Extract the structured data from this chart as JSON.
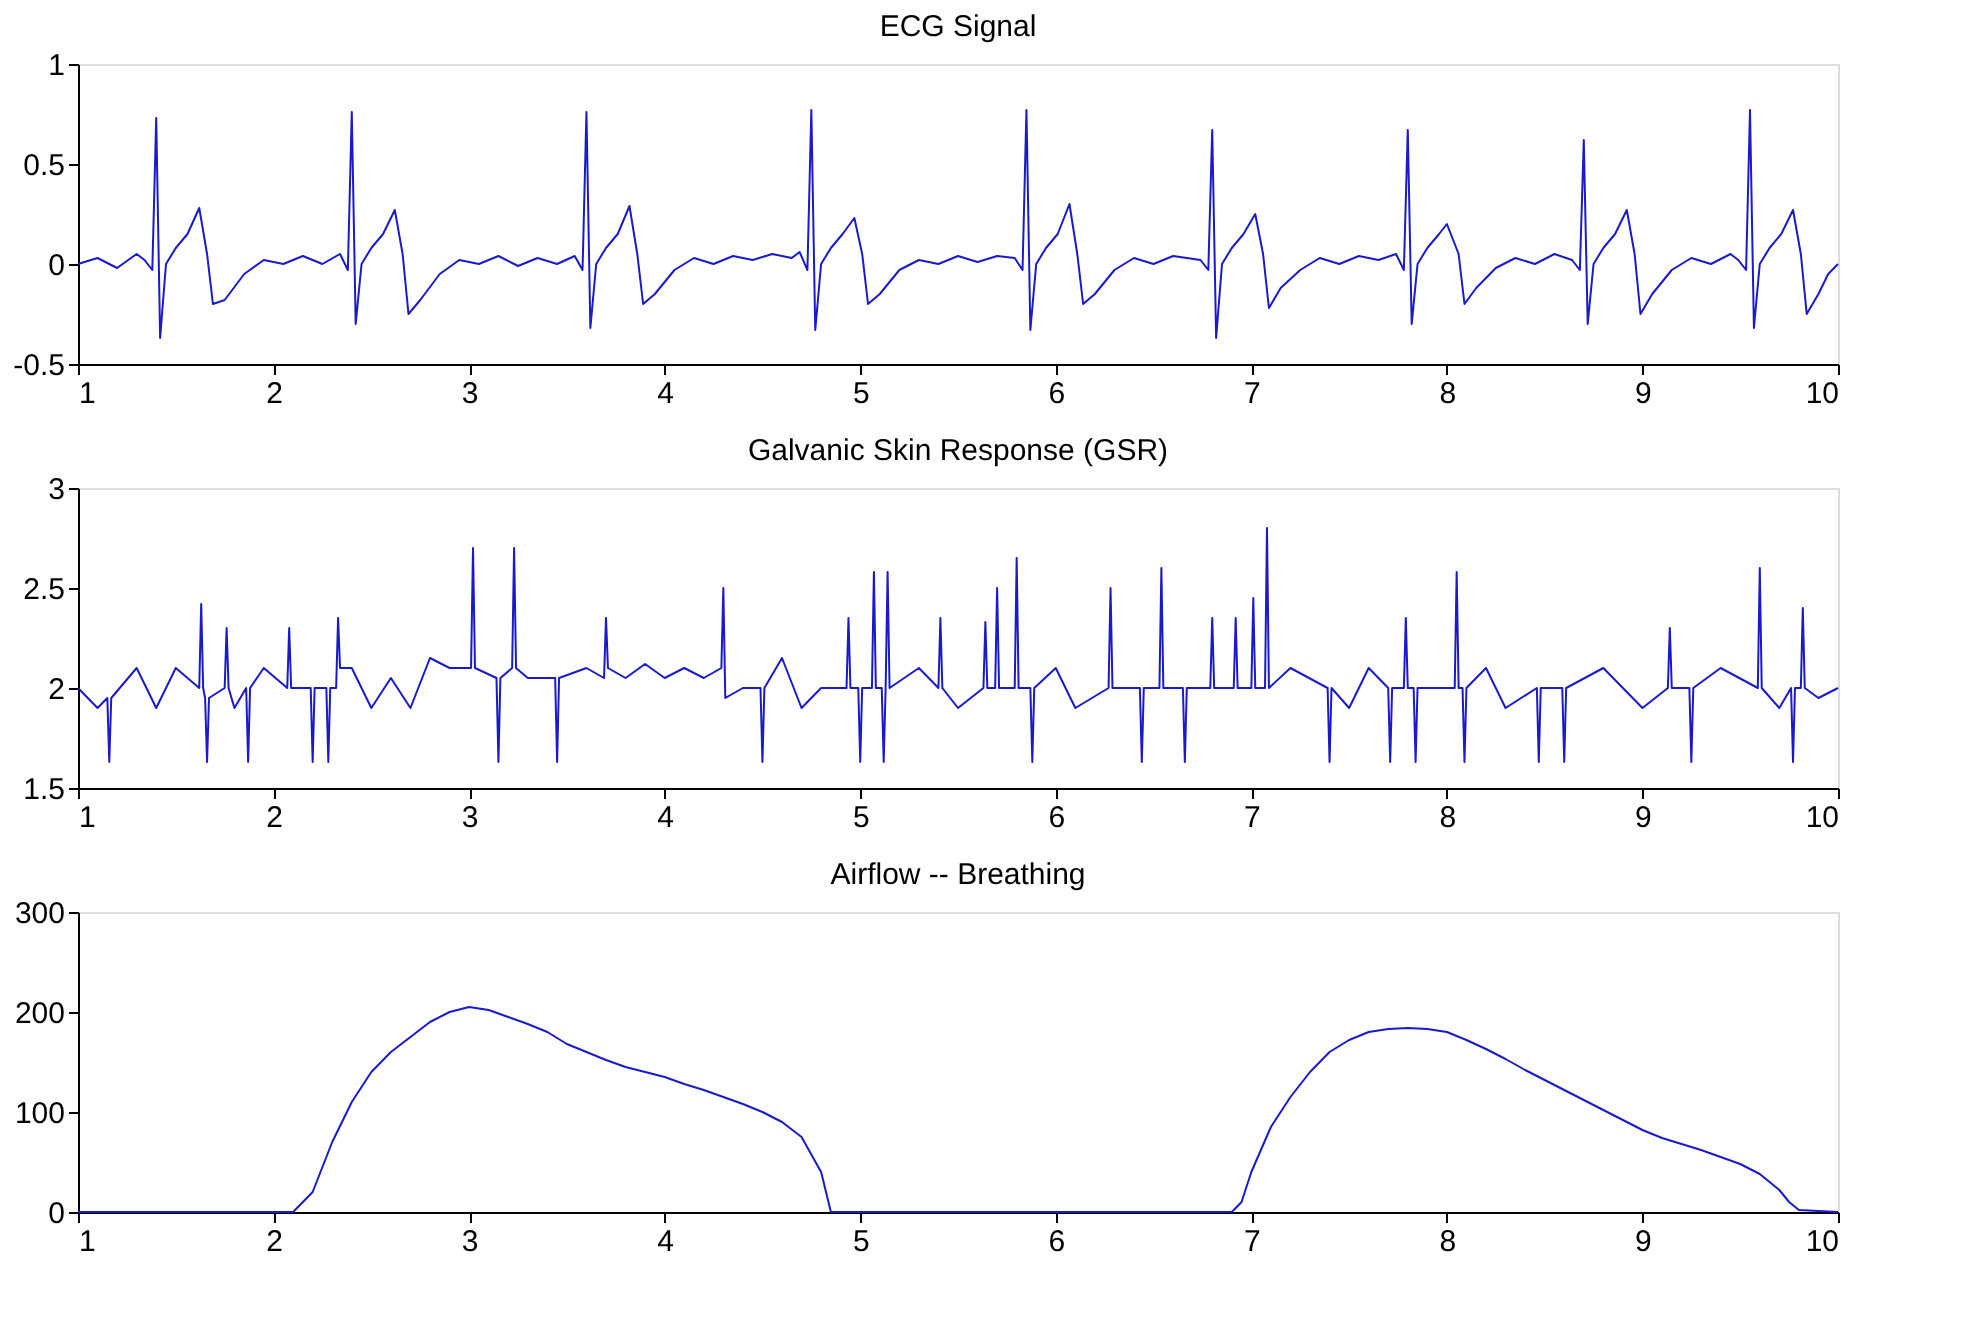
{
  "chart_data": [
    {
      "type": "line",
      "title": "ECG Signal",
      "color": "#1a1acc",
      "xlim": [
        1,
        10
      ],
      "xticks": [
        1,
        2,
        3,
        4,
        5,
        6,
        7,
        8,
        9,
        10
      ],
      "ylim": [
        -0.5,
        1
      ],
      "yticks": [
        -0.5,
        0,
        0.5,
        1
      ],
      "x": [
        1.0,
        1.1,
        1.2,
        1.3,
        1.34,
        1.38,
        1.4,
        1.42,
        1.45,
        1.5,
        1.56,
        1.62,
        1.66,
        1.69,
        1.75,
        1.85,
        1.95,
        2.05,
        2.15,
        2.25,
        2.34,
        2.38,
        2.4,
        2.42,
        2.45,
        2.5,
        2.56,
        2.62,
        2.66,
        2.69,
        2.75,
        2.85,
        2.95,
        3.05,
        3.15,
        3.25,
        3.35,
        3.45,
        3.54,
        3.58,
        3.6,
        3.62,
        3.65,
        3.7,
        3.76,
        3.82,
        3.86,
        3.89,
        3.95,
        4.05,
        4.15,
        4.25,
        4.35,
        4.45,
        4.55,
        4.65,
        4.69,
        4.73,
        4.75,
        4.77,
        4.8,
        4.85,
        4.91,
        4.97,
        5.01,
        5.04,
        5.1,
        5.2,
        5.3,
        5.4,
        5.5,
        5.6,
        5.7,
        5.79,
        5.83,
        5.85,
        5.87,
        5.9,
        5.95,
        6.01,
        6.07,
        6.11,
        6.14,
        6.2,
        6.3,
        6.4,
        6.5,
        6.6,
        6.74,
        6.78,
        6.8,
        6.82,
        6.85,
        6.9,
        6.96,
        7.02,
        7.06,
        7.09,
        7.15,
        7.25,
        7.35,
        7.45,
        7.55,
        7.65,
        7.74,
        7.78,
        7.8,
        7.82,
        7.85,
        7.9,
        7.96,
        8.0,
        8.06,
        8.09,
        8.15,
        8.25,
        8.35,
        8.45,
        8.55,
        8.64,
        8.68,
        8.7,
        8.72,
        8.75,
        8.8,
        8.86,
        8.92,
        8.96,
        8.99,
        9.05,
        9.15,
        9.25,
        9.35,
        9.45,
        9.49,
        9.53,
        9.55,
        9.57,
        9.6,
        9.65,
        9.71,
        9.77,
        9.81,
        9.84,
        9.9,
        9.95,
        10.0
      ],
      "values": [
        0.0,
        0.03,
        -0.02,
        0.05,
        0.02,
        -0.03,
        0.73,
        -0.37,
        0.0,
        0.08,
        0.15,
        0.28,
        0.05,
        -0.2,
        -0.18,
        -0.05,
        0.02,
        0.0,
        0.04,
        0.0,
        0.05,
        -0.03,
        0.76,
        -0.3,
        0.0,
        0.08,
        0.15,
        0.27,
        0.05,
        -0.25,
        -0.18,
        -0.05,
        0.02,
        0.0,
        0.04,
        -0.01,
        0.03,
        0.0,
        0.04,
        -0.03,
        0.76,
        -0.32,
        0.0,
        0.08,
        0.15,
        0.29,
        0.05,
        -0.2,
        -0.15,
        -0.03,
        0.03,
        0.0,
        0.04,
        0.02,
        0.05,
        0.03,
        0.06,
        -0.03,
        0.77,
        -0.33,
        0.0,
        0.08,
        0.15,
        0.23,
        0.05,
        -0.2,
        -0.15,
        -0.03,
        0.02,
        0.0,
        0.04,
        0.01,
        0.04,
        0.03,
        -0.03,
        0.77,
        -0.33,
        0.0,
        0.08,
        0.15,
        0.3,
        0.05,
        -0.2,
        -0.15,
        -0.03,
        0.03,
        0.0,
        0.04,
        0.02,
        -0.03,
        0.67,
        -0.37,
        0.0,
        0.08,
        0.15,
        0.25,
        0.05,
        -0.22,
        -0.12,
        -0.03,
        0.03,
        0.0,
        0.04,
        0.02,
        0.05,
        -0.03,
        0.67,
        -0.3,
        0.0,
        0.08,
        0.15,
        0.2,
        0.05,
        -0.2,
        -0.12,
        -0.02,
        0.03,
        0.0,
        0.05,
        0.02,
        -0.03,
        0.62,
        -0.3,
        0.0,
        0.08,
        0.15,
        0.27,
        0.05,
        -0.25,
        -0.15,
        -0.03,
        0.03,
        0.0,
        0.05,
        0.02,
        -0.03,
        0.77,
        -0.32,
        0.0,
        0.08,
        0.15,
        0.27,
        0.05,
        -0.25,
        -0.15,
        -0.05,
        0.0
      ]
    },
    {
      "type": "line",
      "title": "Galvanic Skin Response (GSR)",
      "color": "#1a1acc",
      "xlim": [
        1,
        10
      ],
      "xticks": [
        1,
        2,
        3,
        4,
        5,
        6,
        7,
        8,
        9,
        10
      ],
      "ylim": [
        1.5,
        3
      ],
      "yticks": [
        1.5,
        2,
        2.5,
        3
      ],
      "x": [
        1.0,
        1.1,
        1.15,
        1.16,
        1.17,
        1.3,
        1.4,
        1.5,
        1.62,
        1.63,
        1.64,
        1.65,
        1.66,
        1.67,
        1.75,
        1.76,
        1.77,
        1.8,
        1.86,
        1.87,
        1.88,
        1.95,
        2.07,
        2.08,
        2.09,
        2.19,
        2.2,
        2.21,
        2.27,
        2.28,
        2.29,
        2.32,
        2.33,
        2.34,
        2.4,
        2.5,
        2.6,
        2.7,
        2.8,
        2.9,
        3.01,
        3.02,
        3.03,
        3.14,
        3.15,
        3.16,
        3.22,
        3.23,
        3.24,
        3.3,
        3.44,
        3.45,
        3.46,
        3.6,
        3.69,
        3.7,
        3.71,
        3.8,
        3.9,
        4.0,
        4.1,
        4.2,
        4.29,
        4.3,
        4.31,
        4.4,
        4.49,
        4.5,
        4.51,
        4.6,
        4.7,
        4.8,
        4.93,
        4.94,
        4.95,
        4.99,
        5.0,
        5.01,
        5.06,
        5.07,
        5.08,
        5.11,
        5.12,
        5.13,
        5.14,
        5.15,
        5.3,
        5.4,
        5.41,
        5.42,
        5.5,
        5.63,
        5.64,
        5.65,
        5.69,
        5.7,
        5.71,
        5.79,
        5.8,
        5.81,
        5.87,
        5.88,
        5.89,
        6.0,
        6.1,
        6.27,
        6.28,
        6.29,
        6.43,
        6.44,
        6.45,
        6.53,
        6.54,
        6.55,
        6.65,
        6.66,
        6.67,
        6.79,
        6.8,
        6.81,
        6.91,
        6.92,
        6.93,
        7.0,
        7.01,
        7.02,
        7.07,
        7.08,
        7.09,
        7.2,
        7.39,
        7.4,
        7.41,
        7.5,
        7.6,
        7.7,
        7.71,
        7.72,
        7.78,
        7.79,
        7.8,
        7.83,
        7.84,
        7.85,
        7.95,
        8.04,
        8.05,
        8.06,
        8.08,
        8.09,
        8.1,
        8.2,
        8.3,
        8.46,
        8.47,
        8.48,
        8.59,
        8.6,
        8.61,
        8.8,
        9.0,
        9.13,
        9.14,
        9.15,
        9.24,
        9.25,
        9.26,
        9.4,
        9.59,
        9.6,
        9.61,
        9.7,
        9.76,
        9.77,
        9.78,
        9.81,
        9.82,
        9.83,
        9.9,
        10.0
      ],
      "values": [
        2.0,
        1.9,
        1.95,
        1.63,
        1.95,
        2.1,
        1.9,
        2.1,
        2.0,
        2.42,
        2.0,
        1.95,
        1.63,
        1.95,
        2.0,
        2.3,
        2.0,
        1.9,
        2.0,
        1.63,
        2.0,
        2.1,
        2.0,
        2.3,
        2.0,
        2.0,
        1.63,
        2.0,
        2.0,
        1.63,
        2.0,
        2.0,
        2.35,
        2.1,
        2.1,
        1.9,
        2.05,
        1.9,
        2.15,
        2.1,
        2.1,
        2.7,
        2.1,
        2.05,
        1.63,
        2.05,
        2.1,
        2.7,
        2.1,
        2.05,
        2.05,
        1.63,
        2.05,
        2.1,
        2.05,
        2.35,
        2.1,
        2.05,
        2.12,
        2.05,
        2.1,
        2.05,
        2.1,
        2.5,
        1.95,
        2.0,
        2.0,
        1.63,
        2.0,
        2.15,
        1.9,
        2.0,
        2.0,
        2.35,
        2.0,
        2.0,
        1.63,
        2.0,
        2.0,
        2.58,
        2.0,
        2.0,
        1.63,
        2.0,
        2.58,
        2.0,
        2.1,
        2.0,
        2.35,
        2.0,
        1.9,
        2.0,
        2.33,
        2.0,
        2.0,
        2.5,
        2.0,
        2.0,
        2.65,
        2.0,
        2.0,
        1.63,
        2.0,
        2.1,
        1.9,
        2.0,
        2.5,
        2.0,
        2.0,
        1.63,
        2.0,
        2.0,
        2.6,
        2.0,
        2.0,
        1.63,
        2.0,
        2.0,
        2.35,
        2.0,
        2.0,
        2.35,
        2.0,
        2.0,
        2.45,
        2.0,
        2.0,
        2.8,
        2.0,
        2.1,
        2.0,
        1.63,
        2.0,
        1.9,
        2.1,
        2.0,
        1.63,
        2.0,
        2.0,
        2.35,
        2.0,
        2.0,
        1.63,
        2.0,
        2.0,
        2.0,
        2.58,
        2.0,
        2.0,
        1.63,
        2.0,
        2.1,
        1.9,
        2.0,
        1.63,
        2.0,
        2.0,
        1.63,
        2.0,
        2.1,
        1.9,
        2.0,
        2.3,
        2.0,
        2.0,
        1.63,
        2.0,
        2.1,
        2.0,
        2.6,
        2.0,
        1.9,
        2.0,
        1.63,
        2.0,
        2.0,
        2.4,
        2.0,
        1.95,
        2.0
      ]
    },
    {
      "type": "line",
      "title": "Airflow -- Breathing",
      "color": "#1a1acc",
      "xlim": [
        1,
        10
      ],
      "xticks": [
        1,
        2,
        3,
        4,
        5,
        6,
        7,
        8,
        9,
        10
      ],
      "ylim": [
        0,
        300
      ],
      "yticks": [
        0,
        100,
        200,
        300
      ],
      "x": [
        1.0,
        1.5,
        2.0,
        2.1,
        2.2,
        2.3,
        2.4,
        2.5,
        2.6,
        2.7,
        2.8,
        2.9,
        3.0,
        3.1,
        3.2,
        3.3,
        3.4,
        3.5,
        3.6,
        3.7,
        3.8,
        3.9,
        4.0,
        4.1,
        4.2,
        4.3,
        4.4,
        4.5,
        4.6,
        4.7,
        4.8,
        4.85,
        5.0,
        5.5,
        6.0,
        6.5,
        6.9,
        6.95,
        7.0,
        7.1,
        7.2,
        7.3,
        7.4,
        7.5,
        7.6,
        7.7,
        7.8,
        7.9,
        8.0,
        8.1,
        8.2,
        8.3,
        8.4,
        8.5,
        8.6,
        8.7,
        8.8,
        8.9,
        9.0,
        9.1,
        9.2,
        9.3,
        9.4,
        9.5,
        9.6,
        9.65,
        9.7,
        9.75,
        9.8,
        10.0
      ],
      "values": [
        0,
        0,
        0,
        0,
        20,
        70,
        110,
        140,
        160,
        175,
        190,
        200,
        205,
        202,
        195,
        188,
        180,
        168,
        160,
        152,
        145,
        140,
        135,
        128,
        122,
        115,
        108,
        100,
        90,
        75,
        40,
        0,
        0,
        0,
        0,
        0,
        0,
        10,
        40,
        85,
        115,
        140,
        160,
        172,
        180,
        183,
        184,
        183,
        180,
        172,
        163,
        153,
        142,
        132,
        122,
        112,
        102,
        92,
        82,
        74,
        68,
        62,
        55,
        48,
        38,
        30,
        22,
        10,
        2,
        0
      ]
    }
  ]
}
